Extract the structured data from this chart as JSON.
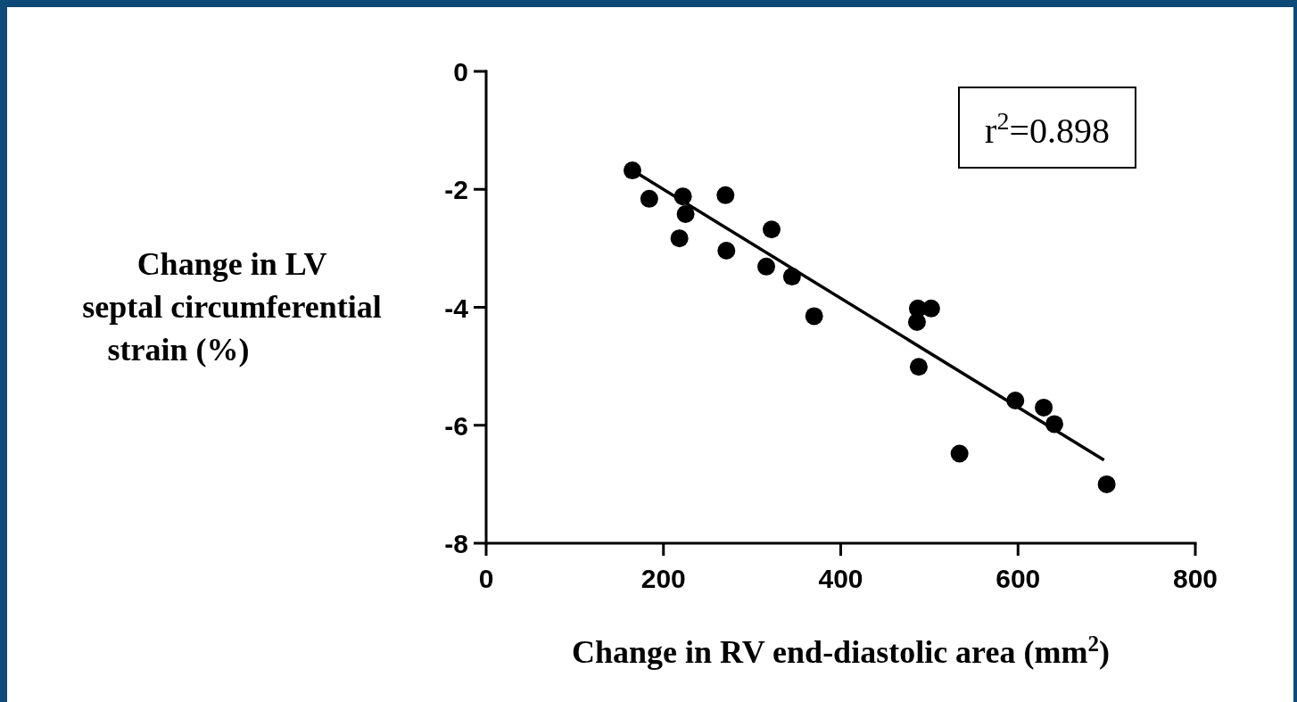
{
  "chart_data": {
    "type": "scatter",
    "xlabel": "Change in RV end-diastolic area (mm$^{2}$)",
    "ylabel": "Change in LV septal circumferential strain (%)",
    "xlim": [
      0,
      800
    ],
    "xticks": [
      0,
      200,
      400,
      600,
      800
    ],
    "ylim": [
      -8,
      0
    ],
    "yticks": [
      -8,
      -6,
      -4,
      -2,
      0
    ],
    "grid": false,
    "marker": "circle",
    "annotations": [
      "r$^{2}$=0.898"
    ],
    "series": [
      {
        "color": "#000000",
        "x": [
          165,
          184,
          222,
          225,
          218,
          270,
          271,
          322,
          316,
          345,
          370,
          487,
          502,
          486,
          488,
          534,
          597,
          629,
          641,
          700
        ],
        "values": [
          -1.68,
          -2.16,
          -2.12,
          -2.42,
          -2.83,
          -2.1,
          -3.04,
          -2.68,
          -3.31,
          -3.48,
          -4.15,
          -4.02,
          -4.02,
          -4.25,
          -5.01,
          -6.48,
          -5.58,
          -5.7,
          -5.98,
          -7.0
        ]
      },
      {
        "type": "line",
        "color": "#000000",
        "marker": "none",
        "line_style": "solid",
        "x": [
          162,
          697
        ],
        "values": [
          -1.65,
          -6.59
        ]
      }
    ]
  }
}
